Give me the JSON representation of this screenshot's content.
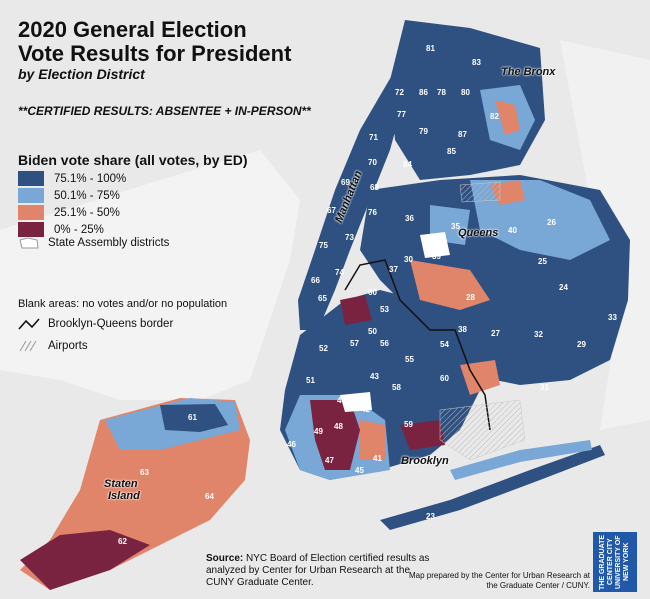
{
  "title_line1": "2020 General Election",
  "title_line2": "Vote Results for President",
  "subtitle": "by Election District",
  "certified": "**CERTIFIED RESULTS: ABSENTEE + IN-PERSON**",
  "legend": {
    "title": "Biden vote share (all votes, by ED)",
    "items": [
      {
        "label": "75.1% - 100%",
        "color": "#2e5182"
      },
      {
        "label": "50.1% - 75%",
        "color": "#7aa8d6"
      },
      {
        "label": "25.1% - 50%",
        "color": "#e0846a"
      },
      {
        "label": "0% - 25%",
        "color": "#7a2340"
      }
    ],
    "assembly_label": "State Assembly districts",
    "blank_note": "Blank areas: no votes and/or no population",
    "border_label": "Brooklyn-Queens border",
    "airports_label": "Airports"
  },
  "borough_labels": {
    "bronx": "The Bronx",
    "manhattan": "Manhattan",
    "queens": "Queens",
    "brooklyn": "Brooklyn",
    "staten_island_1": "Staten",
    "staten_island_2": "Island"
  },
  "district_numbers": [
    "81",
    "83",
    "72",
    "86",
    "78",
    "80",
    "77",
    "79",
    "87",
    "82",
    "71",
    "85",
    "84",
    "70",
    "69",
    "68",
    "67",
    "76",
    "36",
    "26",
    "40",
    "75",
    "73",
    "34",
    "39",
    "35",
    "30",
    "25",
    "74",
    "37",
    "24",
    "66",
    "60",
    "53",
    "28",
    "65",
    "38",
    "33",
    "52",
    "57",
    "56",
    "54",
    "50",
    "32",
    "29",
    "55",
    "51",
    "43",
    "58",
    "44",
    "60",
    "31",
    "42",
    "46",
    "49",
    "48",
    "41",
    "59",
    "47",
    "45",
    "61",
    "63",
    "64",
    "62",
    "23",
    "27"
  ],
  "source": {
    "label": "Source:",
    "text": "NYC Board of Election certified results as analyzed by Center for Urban Research at the CUNY Graduate Center."
  },
  "prepared_by": "Map prepared by the Center for Urban Research at the Graduate Center / CUNY.",
  "logo_text": "THE GRADUATE CENTER CITY UNIVERSITY OF NEW YORK"
}
